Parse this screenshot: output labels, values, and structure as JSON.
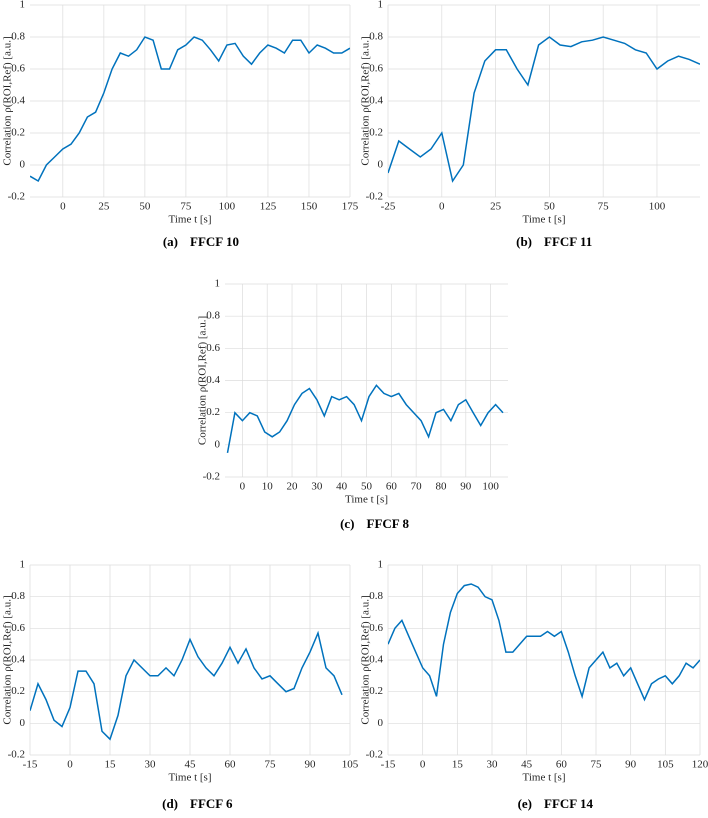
{
  "chart_data": [
    {
      "type": "line",
      "caption_label": "(a)",
      "caption": "FFCF 10",
      "ylabel": "Correlation ρ(ROI,Ref) [a.u.]",
      "xlabel": "Time t [s]",
      "color": "#0072bd",
      "grid": true,
      "xlim": [
        -20,
        175
      ],
      "xticks": [
        0,
        25,
        50,
        75,
        100,
        125,
        150,
        175
      ],
      "ylim": [
        -0.2,
        1
      ],
      "yticks": [
        -0.2,
        0,
        0.2,
        0.4,
        0.6,
        0.8,
        1
      ],
      "x": [
        -20,
        -15,
        -10,
        -5,
        0,
        5,
        10,
        15,
        20,
        25,
        30,
        35,
        40,
        45,
        50,
        55,
        60,
        65,
        70,
        75,
        80,
        85,
        90,
        95,
        100,
        105,
        110,
        115,
        120,
        125,
        130,
        135,
        140,
        145,
        150,
        155,
        160,
        165,
        170,
        175
      ],
      "values": [
        -0.07,
        -0.1,
        0.0,
        0.05,
        0.1,
        0.13,
        0.2,
        0.3,
        0.33,
        0.45,
        0.6,
        0.7,
        0.68,
        0.72,
        0.8,
        0.78,
        0.6,
        0.6,
        0.72,
        0.75,
        0.8,
        0.78,
        0.72,
        0.65,
        0.75,
        0.76,
        0.68,
        0.63,
        0.7,
        0.75,
        0.73,
        0.7,
        0.78,
        0.78,
        0.7,
        0.75,
        0.73,
        0.7,
        0.7,
        0.73
      ]
    },
    {
      "type": "line",
      "caption_label": "(b)",
      "caption": "FFCF 11",
      "ylabel": "Correlation ρ(ROI,Ref) [a.u.]",
      "xlabel": "Time t [s]",
      "color": "#0072bd",
      "grid": true,
      "xlim": [
        -25,
        120
      ],
      "xticks": [
        -25,
        0,
        25,
        50,
        75,
        100
      ],
      "ylim": [
        -0.2,
        1
      ],
      "yticks": [
        -0.2,
        0,
        0.2,
        0.4,
        0.6,
        0.8,
        1
      ],
      "x": [
        -25,
        -20,
        -15,
        -10,
        -5,
        0,
        5,
        10,
        15,
        20,
        25,
        30,
        35,
        40,
        45,
        50,
        55,
        60,
        65,
        70,
        75,
        80,
        85,
        90,
        95,
        100,
        105,
        110,
        115,
        120
      ],
      "values": [
        -0.05,
        0.15,
        0.1,
        0.05,
        0.1,
        0.2,
        -0.1,
        0.0,
        0.45,
        0.65,
        0.72,
        0.72,
        0.6,
        0.5,
        0.75,
        0.8,
        0.75,
        0.74,
        0.77,
        0.78,
        0.8,
        0.78,
        0.76,
        0.72,
        0.7,
        0.6,
        0.65,
        0.68,
        0.66,
        0.63
      ]
    },
    {
      "type": "line",
      "caption_label": "(c)",
      "caption": "FFCF 8",
      "ylabel": "Correlation ρ(ROI,Ref) [a.u.]",
      "xlabel": "Time t [s]",
      "color": "#0072bd",
      "grid": true,
      "xlim": [
        -7,
        107
      ],
      "xticks": [
        0,
        10,
        20,
        30,
        40,
        50,
        60,
        70,
        80,
        90,
        100
      ],
      "ylim": [
        -0.2,
        1
      ],
      "yticks": [
        -0.2,
        0,
        0.2,
        0.4,
        0.6,
        0.8,
        1
      ],
      "x": [
        -6,
        -3,
        0,
        3,
        6,
        9,
        12,
        15,
        18,
        21,
        24,
        27,
        30,
        33,
        36,
        39,
        42,
        45,
        48,
        51,
        54,
        57,
        60,
        63,
        66,
        69,
        72,
        75,
        78,
        81,
        84,
        87,
        90,
        93,
        96,
        99,
        102,
        105
      ],
      "values": [
        -0.05,
        0.2,
        0.15,
        0.2,
        0.18,
        0.08,
        0.05,
        0.08,
        0.15,
        0.25,
        0.32,
        0.35,
        0.28,
        0.18,
        0.3,
        0.28,
        0.3,
        0.25,
        0.15,
        0.3,
        0.37,
        0.32,
        0.3,
        0.32,
        0.25,
        0.2,
        0.15,
        0.05,
        0.2,
        0.22,
        0.15,
        0.25,
        0.28,
        0.2,
        0.12,
        0.2,
        0.25,
        0.2
      ]
    },
    {
      "type": "line",
      "caption_label": "(d)",
      "caption": "FFCF 6",
      "ylabel": "Correlation ρ(ROI,Ref) [a.u.]",
      "xlabel": "Time t [s]",
      "color": "#0072bd",
      "grid": true,
      "xlim": [
        -15,
        105
      ],
      "xticks": [
        -15,
        0,
        15,
        30,
        45,
        60,
        75,
        90,
        105
      ],
      "ylim": [
        -0.2,
        1
      ],
      "yticks": [
        -0.2,
        0,
        0.2,
        0.4,
        0.6,
        0.8,
        1
      ],
      "x": [
        -15,
        -12,
        -9,
        -6,
        -3,
        0,
        3,
        6,
        9,
        12,
        15,
        18,
        21,
        24,
        27,
        30,
        33,
        36,
        39,
        42,
        45,
        48,
        51,
        54,
        57,
        60,
        63,
        66,
        69,
        72,
        75,
        78,
        81,
        84,
        87,
        90,
        93,
        96,
        99,
        102
      ],
      "values": [
        0.08,
        0.25,
        0.15,
        0.02,
        -0.02,
        0.1,
        0.33,
        0.33,
        0.25,
        -0.05,
        -0.1,
        0.05,
        0.3,
        0.4,
        0.35,
        0.3,
        0.3,
        0.35,
        0.3,
        0.4,
        0.53,
        0.42,
        0.35,
        0.3,
        0.38,
        0.48,
        0.38,
        0.47,
        0.35,
        0.28,
        0.3,
        0.25,
        0.2,
        0.22,
        0.35,
        0.45,
        0.57,
        0.35,
        0.3,
        0.18
      ]
    },
    {
      "type": "line",
      "caption_label": "(e)",
      "caption": "FFCF 14",
      "ylabel": "Correlation ρ(ROI,Ref) [a.u.]",
      "xlabel": "Time t [s]",
      "color": "#0072bd",
      "grid": true,
      "xlim": [
        -15,
        120
      ],
      "xticks": [
        -15,
        0,
        15,
        30,
        45,
        60,
        75,
        90,
        105,
        120
      ],
      "ylim": [
        -0.2,
        1
      ],
      "yticks": [
        -0.2,
        0,
        0.2,
        0.4,
        0.6,
        0.8,
        1
      ],
      "x": [
        -15,
        -12,
        -9,
        -6,
        -3,
        0,
        3,
        6,
        9,
        12,
        15,
        18,
        21,
        24,
        27,
        30,
        33,
        36,
        39,
        42,
        45,
        48,
        51,
        54,
        57,
        60,
        63,
        66,
        69,
        72,
        75,
        78,
        81,
        84,
        87,
        90,
        93,
        96,
        99,
        102,
        105,
        108,
        111,
        114,
        117,
        120
      ],
      "values": [
        0.5,
        0.6,
        0.65,
        0.55,
        0.45,
        0.35,
        0.3,
        0.17,
        0.5,
        0.7,
        0.82,
        0.87,
        0.88,
        0.86,
        0.8,
        0.78,
        0.65,
        0.45,
        0.45,
        0.5,
        0.55,
        0.55,
        0.55,
        0.58,
        0.55,
        0.58,
        0.45,
        0.3,
        0.17,
        0.35,
        0.4,
        0.45,
        0.35,
        0.38,
        0.3,
        0.35,
        0.25,
        0.15,
        0.25,
        0.28,
        0.3,
        0.25,
        0.3,
        0.38,
        0.35,
        0.4
      ]
    }
  ]
}
